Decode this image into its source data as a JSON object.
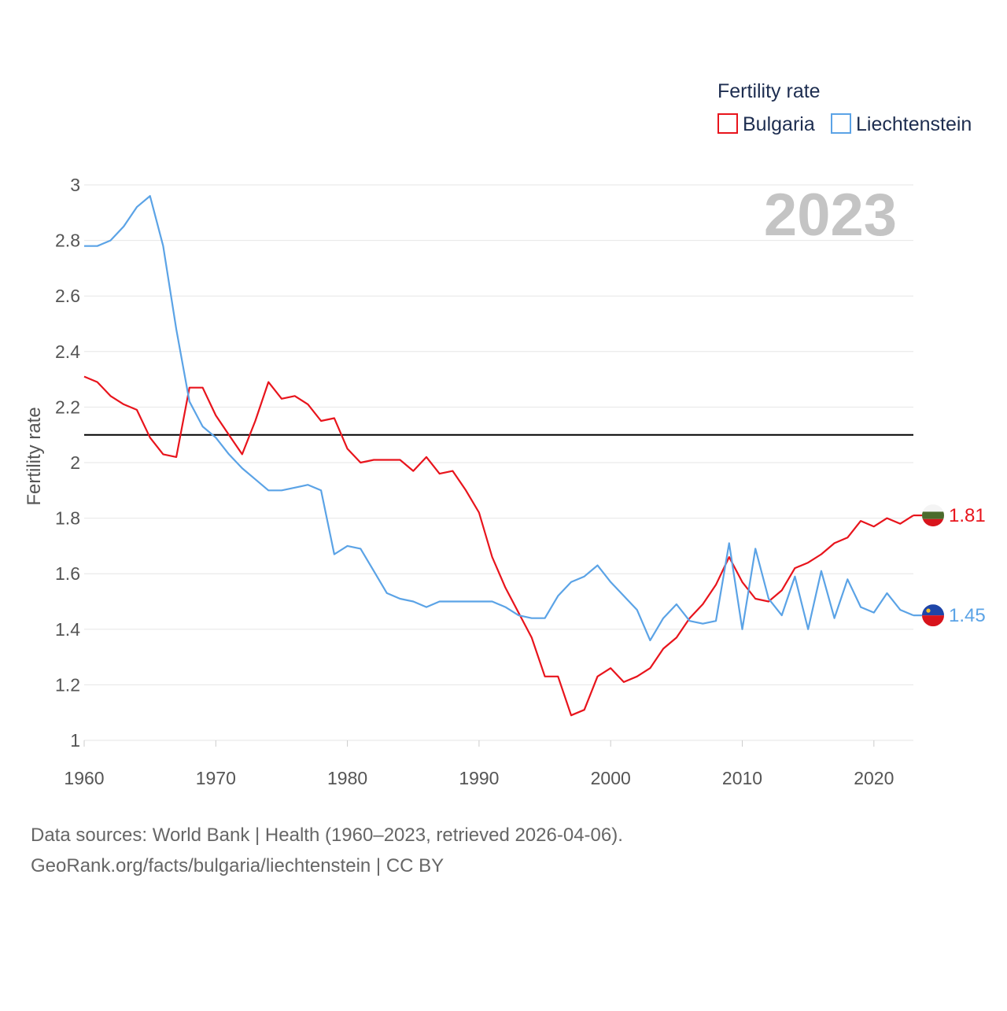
{
  "chart_data": {
    "type": "line",
    "title": "Fertility rate",
    "ylabel": "Fertility rate",
    "xlabel": "",
    "xlim": [
      1960,
      2023
    ],
    "ylim": [
      1,
      3
    ],
    "x_ticks": [
      1960,
      1970,
      1980,
      1990,
      2000,
      2010,
      2020
    ],
    "y_ticks": [
      1,
      1.2,
      1.4,
      1.6,
      1.8,
      2,
      2.2,
      2.4,
      2.6,
      2.8,
      3
    ],
    "y_tick_labels": [
      "1",
      "1.2",
      "1.4",
      "1.6",
      "1.8",
      "2",
      "2.2",
      "2.4",
      "2.6",
      "2.8",
      "3"
    ],
    "x_tick_labels": [
      "1960",
      "1970",
      "1980",
      "1990",
      "2000",
      "2010",
      "2020"
    ],
    "grid": true,
    "legend_position": "top-right",
    "year_label": "2023",
    "reference_line": {
      "y": 2.1,
      "color": "#000000"
    },
    "x": [
      1960,
      1961,
      1962,
      1963,
      1964,
      1965,
      1966,
      1967,
      1968,
      1969,
      1970,
      1971,
      1972,
      1973,
      1974,
      1975,
      1976,
      1977,
      1978,
      1979,
      1980,
      1981,
      1982,
      1983,
      1984,
      1985,
      1986,
      1987,
      1988,
      1989,
      1990,
      1991,
      1992,
      1993,
      1994,
      1995,
      1996,
      1997,
      1998,
      1999,
      2000,
      2001,
      2002,
      2003,
      2004,
      2005,
      2006,
      2007,
      2008,
      2009,
      2010,
      2011,
      2012,
      2013,
      2014,
      2015,
      2016,
      2017,
      2018,
      2019,
      2020,
      2021,
      2022,
      2023
    ],
    "series": [
      {
        "name": "Bulgaria",
        "color": "#e8141c",
        "end_label": "1.81",
        "values": [
          2.31,
          2.29,
          2.24,
          2.21,
          2.19,
          2.09,
          2.03,
          2.02,
          2.27,
          2.27,
          2.17,
          2.1,
          2.03,
          2.15,
          2.29,
          2.23,
          2.24,
          2.21,
          2.15,
          2.16,
          2.05,
          2.0,
          2.01,
          2.01,
          2.01,
          1.97,
          2.02,
          1.96,
          1.97,
          1.9,
          1.82,
          1.66,
          1.55,
          1.46,
          1.37,
          1.23,
          1.23,
          1.09,
          1.11,
          1.23,
          1.26,
          1.21,
          1.23,
          1.26,
          1.33,
          1.37,
          1.44,
          1.49,
          1.56,
          1.66,
          1.57,
          1.51,
          1.5,
          1.54,
          1.62,
          1.64,
          1.67,
          1.71,
          1.73,
          1.79,
          1.77,
          1.8,
          1.78,
          1.81
        ]
      },
      {
        "name": "Liechtenstein",
        "color": "#5ba3e6",
        "end_label": "1.45",
        "values": [
          2.78,
          2.78,
          2.8,
          2.85,
          2.92,
          2.96,
          2.78,
          2.48,
          2.22,
          2.13,
          2.09,
          2.03,
          1.98,
          1.94,
          1.9,
          1.9,
          1.91,
          1.92,
          1.9,
          1.67,
          1.7,
          1.69,
          1.61,
          1.53,
          1.51,
          1.5,
          1.48,
          1.5,
          1.5,
          1.5,
          1.5,
          1.5,
          1.48,
          1.45,
          1.44,
          1.44,
          1.52,
          1.57,
          1.59,
          1.63,
          1.57,
          1.52,
          1.47,
          1.36,
          1.44,
          1.49,
          1.43,
          1.42,
          1.43,
          1.71,
          1.4,
          1.69,
          1.51,
          1.45,
          1.59,
          1.4,
          1.61,
          1.44,
          1.58,
          1.48,
          1.46,
          1.53,
          1.47,
          1.45
        ]
      }
    ],
    "footer": {
      "line1": "Data sources: World Bank | Health (1960–2023, retrieved 2026-04-06).",
      "line2": "GeoRank.org/facts/bulgaria/liechtenstein | CC BY"
    }
  }
}
